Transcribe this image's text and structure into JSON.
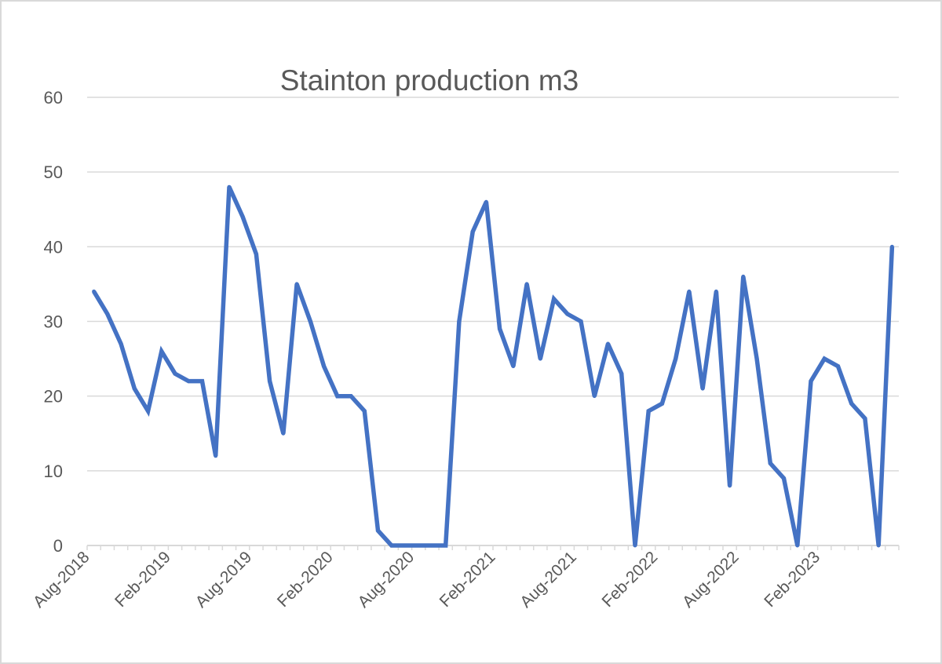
{
  "chart_data": {
    "type": "line",
    "title": "Stainton production m3",
    "xlabel": "",
    "ylabel": "",
    "ylim": [
      0,
      60
    ],
    "y_ticks": [
      0,
      10,
      20,
      30,
      40,
      50,
      60
    ],
    "x_tick_labels": [
      "Aug-2018",
      "Feb-2019",
      "Aug-2019",
      "Feb-2020",
      "Aug-2020",
      "Feb-2021",
      "Aug-2021",
      "Feb-2022",
      "Aug-2022",
      "Feb-2023"
    ],
    "x_tick_every_n_points": 6,
    "grid": true,
    "legend": "none",
    "series": [
      {
        "name": "Stainton production m3",
        "color": "#4472C4",
        "values": [
          34,
          31,
          27,
          21,
          18,
          26,
          23,
          22,
          22,
          12,
          48,
          44,
          39,
          22,
          15,
          35,
          30,
          24,
          20,
          20,
          18,
          2,
          0,
          0,
          0,
          0,
          0,
          30,
          42,
          46,
          29,
          24,
          35,
          25,
          33,
          31,
          30,
          20,
          27,
          23,
          0,
          18,
          19,
          25,
          34,
          21,
          34,
          8,
          36,
          25,
          11,
          9,
          0,
          22,
          25,
          24,
          19,
          17,
          0,
          40
        ]
      }
    ]
  }
}
